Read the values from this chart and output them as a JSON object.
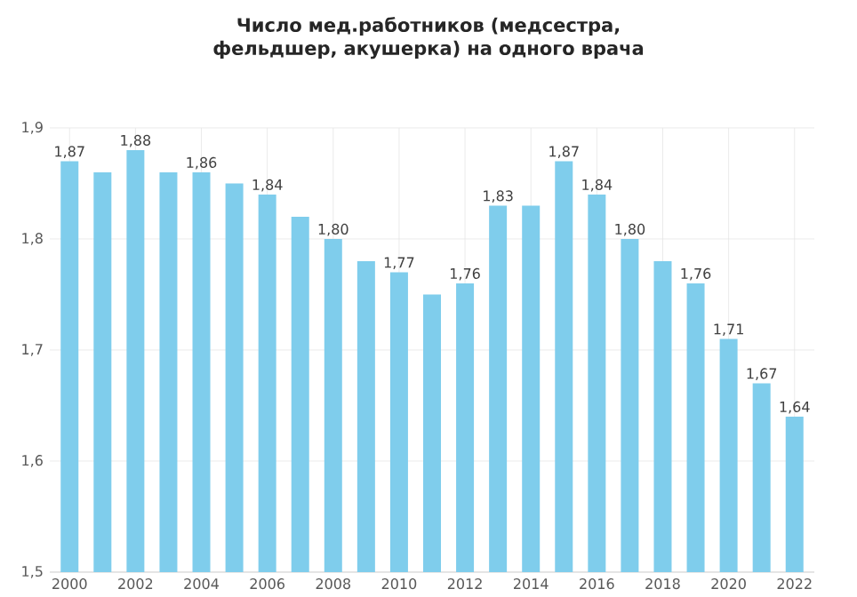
{
  "chart_data": {
    "type": "bar",
    "title": "Число мед.работников (медсестра, фельдшер, акушерка) на одного врача",
    "categories": [
      "2000",
      null,
      "2002",
      null,
      "2004",
      null,
      "2006",
      null,
      "2008",
      null,
      "2010",
      null,
      "2012",
      null,
      "2014",
      null,
      "2016",
      null,
      "2018",
      null,
      "2020",
      null,
      "2022"
    ],
    "values": [
      1.87,
      1.86,
      1.88,
      1.86,
      1.86,
      1.85,
      1.84,
      1.82,
      1.8,
      1.78,
      1.77,
      1.75,
      1.76,
      1.83,
      1.83,
      1.87,
      1.84,
      1.8,
      1.78,
      1.76,
      1.71,
      1.67,
      1.64
    ],
    "value_labels": [
      "1,87",
      null,
      "1,88",
      null,
      "1,86",
      null,
      "1,84",
      null,
      "1,80",
      null,
      "1,77",
      null,
      "1,76",
      "1,83",
      null,
      "1,87",
      "1,84",
      "1,80",
      null,
      "1,76",
      "1,71",
      "1,67",
      "1,64"
    ],
    "color": "#7fcdec",
    "ylim": [
      1.5,
      1.9
    ],
    "yticks": [
      {
        "value": 1.5,
        "label": "1,5"
      },
      {
        "value": 1.6,
        "label": "1,6"
      },
      {
        "value": 1.7,
        "label": "1,7"
      },
      {
        "value": 1.8,
        "label": "1,8"
      },
      {
        "value": 1.9,
        "label": "1,9"
      }
    ],
    "grid": true
  }
}
